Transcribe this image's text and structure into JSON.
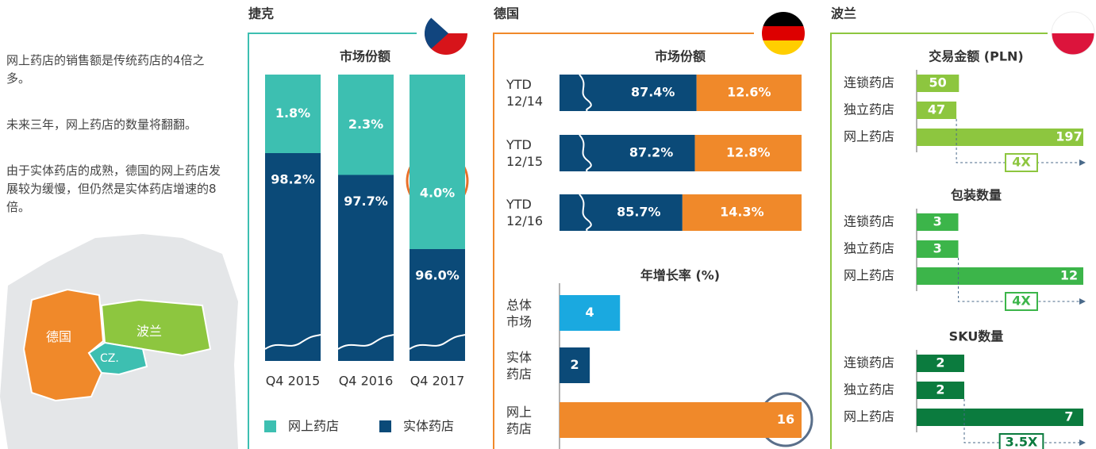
{
  "intro": {
    "paragraphs": [
      "网上药店的销售额是传统药店的4倍之多。",
      "未来三年，网上药店的数量将翻翻。",
      "由于实体药店的成熟，德国的网上药店发展较为缓慢，但仍然是实体药店增速的8倍。"
    ]
  },
  "map": {
    "labels": [
      "德国",
      "波兰",
      "CZ."
    ]
  },
  "chart_data": [
    {
      "type": "stacked-bar",
      "title": "捷克",
      "subtitle": "市场份额",
      "categories": [
        "Q4 2015",
        "Q4 2016",
        "Q4 2017"
      ],
      "series": [
        {
          "name": "网上药店",
          "color": "#3dbfb1",
          "values": [
            1.8,
            2.3,
            4.0
          ],
          "value_labels": [
            "1.8%",
            "2.3%",
            "4.0%"
          ]
        },
        {
          "name": "实体药店",
          "color": "#0b4a78",
          "values": [
            98.2,
            97.7,
            96.0
          ],
          "value_labels": [
            "98.2%",
            "97.7%",
            "96.0%"
          ]
        }
      ]
    },
    {
      "type": "stacked-hbar",
      "title": "德国",
      "subtitle": "市场份额",
      "categories": [
        "YTD\n12/14",
        "YTD\n12/15",
        "YTD\n12/16"
      ],
      "series": [
        {
          "color": "#0b4a78",
          "values": [
            87.4,
            87.2,
            85.7
          ],
          "value_labels": [
            "87.4%",
            "87.2%",
            "85.7%"
          ]
        },
        {
          "color": "#f0892a",
          "values": [
            12.6,
            12.8,
            14.3
          ],
          "value_labels": [
            "12.6%",
            "12.8%",
            "14.3%"
          ]
        }
      ]
    },
    {
      "type": "hbar",
      "subtitle": "年增长率 (%)",
      "categories": [
        "总体\n市场",
        "实体\n药店",
        "网上\n药店"
      ],
      "values": [
        4,
        2,
        16
      ],
      "colors": [
        "#1aa9e0",
        "#0b4a78",
        "#f0892a"
      ]
    },
    {
      "type": "hbar-small",
      "title": "波兰",
      "subtitle": "交易金额 (PLN)",
      "categories": [
        "连锁药店",
        "独立药店",
        "网上药店"
      ],
      "values": [
        50,
        47,
        197
      ],
      "color": "#8dc63f",
      "annotation": "4X"
    },
    {
      "type": "hbar-small",
      "subtitle": "包装数量",
      "categories": [
        "连锁药店",
        "独立药店",
        "网上药店"
      ],
      "values": [
        3,
        3,
        12
      ],
      "color": "#3cb54a",
      "annotation": "4X"
    },
    {
      "type": "hbar-small",
      "subtitle": "SKU数量",
      "categories": [
        "连锁药店",
        "独立药店",
        "网上药店"
      ],
      "values": [
        2,
        2,
        7
      ],
      "color": "#0b7b3e",
      "annotation": "3.5X"
    }
  ]
}
